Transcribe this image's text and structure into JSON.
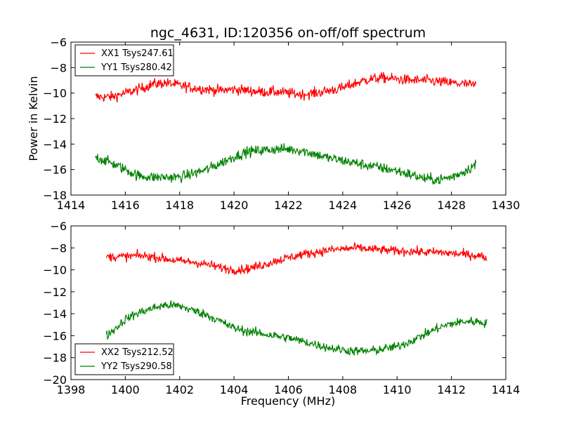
{
  "chart_data": [
    {
      "type": "line",
      "title": "ngc_4631, ID:120356 on-off/off spectrum",
      "xlabel": "",
      "ylabel": "Power in Kelvin",
      "xlim": [
        1414,
        1430
      ],
      "ylim": [
        -18,
        -6
      ],
      "xticks": [
        1414,
        1416,
        1418,
        1420,
        1422,
        1424,
        1426,
        1428,
        1430
      ],
      "yticks": [
        -18,
        -16,
        -14,
        -12,
        -10,
        -8,
        -6
      ],
      "xtick_labels": [
        "1414",
        "1416",
        "1418",
        "1420",
        "1422",
        "1424",
        "1426",
        "1428",
        "1430"
      ],
      "ytick_labels": [
        "−18",
        "−16",
        "−14",
        "−12",
        "−10",
        "−8",
        "−6"
      ],
      "legend_position": "top-left",
      "grid": false,
      "series": [
        {
          "name": "XX1 Tsys247.61",
          "color": "#ff0000",
          "x": [
            1414.9,
            1415.5,
            1416.0,
            1416.5,
            1417.0,
            1417.5,
            1418.0,
            1418.5,
            1419.0,
            1419.5,
            1420.0,
            1420.5,
            1421.0,
            1421.5,
            1422.0,
            1422.5,
            1423.0,
            1423.5,
            1424.0,
            1424.5,
            1425.0,
            1425.5,
            1426.0,
            1426.5,
            1427.0,
            1427.5,
            1428.0,
            1428.5,
            1428.9
          ],
          "y": [
            -10.3,
            -10.3,
            -10.0,
            -9.7,
            -9.3,
            -9.2,
            -9.4,
            -9.6,
            -9.7,
            -9.8,
            -9.7,
            -9.8,
            -9.9,
            -9.9,
            -10.0,
            -10.1,
            -10.0,
            -9.8,
            -9.6,
            -9.2,
            -8.9,
            -8.8,
            -8.9,
            -9.0,
            -9.0,
            -9.1,
            -9.2,
            -9.3,
            -9.4
          ]
        },
        {
          "name": "YY1 Tsys280.42",
          "color": "#008000",
          "x": [
            1414.9,
            1415.5,
            1416.0,
            1416.5,
            1417.0,
            1417.5,
            1418.0,
            1418.5,
            1419.0,
            1419.5,
            1420.0,
            1420.5,
            1421.0,
            1421.5,
            1422.0,
            1422.5,
            1423.0,
            1423.5,
            1424.0,
            1424.5,
            1425.0,
            1425.5,
            1426.0,
            1426.5,
            1427.0,
            1427.5,
            1428.0,
            1428.5,
            1428.9
          ],
          "y": [
            -15.0,
            -15.5,
            -16.0,
            -16.5,
            -16.6,
            -16.6,
            -16.6,
            -16.3,
            -16.0,
            -15.5,
            -15.0,
            -14.6,
            -14.5,
            -14.4,
            -14.4,
            -14.5,
            -14.8,
            -15.1,
            -15.3,
            -15.5,
            -15.7,
            -15.9,
            -16.1,
            -16.4,
            -16.7,
            -16.8,
            -16.6,
            -16.1,
            -15.6
          ]
        }
      ]
    },
    {
      "type": "line",
      "title": "",
      "xlabel": "Frequency (MHz)",
      "ylabel": "",
      "xlim": [
        1398,
        1414
      ],
      "ylim": [
        -20,
        -6
      ],
      "xticks": [
        1398,
        1400,
        1402,
        1404,
        1406,
        1408,
        1410,
        1412,
        1414
      ],
      "yticks": [
        -20,
        -18,
        -16,
        -14,
        -12,
        -10,
        -8,
        -6
      ],
      "xtick_labels": [
        "1398",
        "1400",
        "1402",
        "1404",
        "1406",
        "1408",
        "1410",
        "1412",
        "1414"
      ],
      "ytick_labels": [
        "−20",
        "−18",
        "−16",
        "−14",
        "−12",
        "−10",
        "−8",
        "−6"
      ],
      "legend_position": "bottom-left",
      "grid": false,
      "series": [
        {
          "name": "XX2 Tsys212.52",
          "color": "#ff0000",
          "x": [
            1399.3,
            1400.0,
            1400.5,
            1401.0,
            1401.5,
            1402.0,
            1402.5,
            1403.0,
            1403.5,
            1404.0,
            1404.5,
            1405.0,
            1405.5,
            1406.0,
            1406.5,
            1407.0,
            1407.5,
            1408.0,
            1408.5,
            1409.0,
            1409.5,
            1410.0,
            1410.5,
            1411.0,
            1411.5,
            1412.0,
            1412.5,
            1413.0,
            1413.3
          ],
          "y": [
            -8.8,
            -8.8,
            -8.7,
            -8.8,
            -9.0,
            -9.2,
            -9.3,
            -9.5,
            -9.8,
            -10.0,
            -9.9,
            -9.6,
            -9.2,
            -8.9,
            -8.6,
            -8.4,
            -8.2,
            -8.1,
            -8.0,
            -8.1,
            -8.2,
            -8.3,
            -8.3,
            -8.4,
            -8.4,
            -8.5,
            -8.6,
            -8.7,
            -8.9
          ]
        },
        {
          "name": "YY2 Tsys290.58",
          "color": "#008000",
          "x": [
            1399.3,
            1399.7,
            1400.0,
            1400.5,
            1401.0,
            1401.5,
            1402.0,
            1402.5,
            1403.0,
            1403.5,
            1404.0,
            1404.5,
            1405.0,
            1405.5,
            1406.0,
            1406.5,
            1407.0,
            1407.5,
            1408.0,
            1408.5,
            1409.0,
            1409.5,
            1410.0,
            1410.5,
            1411.0,
            1411.5,
            1412.0,
            1412.5,
            1413.0,
            1413.3
          ],
          "y": [
            -16.0,
            -15.2,
            -14.5,
            -13.9,
            -13.5,
            -13.2,
            -13.3,
            -13.7,
            -14.1,
            -14.7,
            -15.3,
            -15.6,
            -15.8,
            -16.0,
            -16.2,
            -16.5,
            -16.8,
            -17.1,
            -17.3,
            -17.4,
            -17.4,
            -17.2,
            -17.0,
            -16.5,
            -15.9,
            -15.3,
            -14.9,
            -14.7,
            -14.7,
            -14.9
          ]
        }
      ]
    }
  ]
}
